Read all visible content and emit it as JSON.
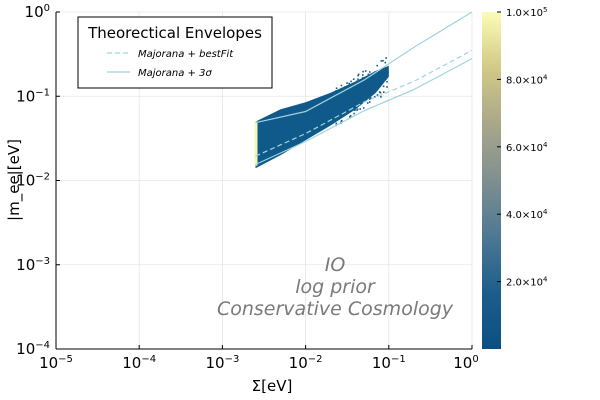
{
  "chart_data": {
    "type": "heatmap",
    "xlabel": "Σ[eV]",
    "ylabel": "|m_ee|[eV]",
    "xscale": "log",
    "yscale": "log",
    "xlim": [
      1e-05,
      1
    ],
    "ylim": [
      0.0001,
      1
    ],
    "x_ticks": [
      {
        "value": 1e-05,
        "base": "10",
        "exp": "−5"
      },
      {
        "value": 0.0001,
        "base": "10",
        "exp": "−4"
      },
      {
        "value": 0.001,
        "base": "10",
        "exp": "−3"
      },
      {
        "value": 0.01,
        "base": "10",
        "exp": "−2"
      },
      {
        "value": 0.1,
        "base": "10",
        "exp": "−1"
      },
      {
        "value": 1,
        "base": "10",
        "exp": "0"
      }
    ],
    "y_ticks": [
      {
        "value": 0.0001,
        "base": "10",
        "exp": "−4"
      },
      {
        "value": 0.001,
        "base": "10",
        "exp": "−3"
      },
      {
        "value": 0.01,
        "base": "10",
        "exp": "−2"
      },
      {
        "value": 0.1,
        "base": "10",
        "exp": "−1"
      },
      {
        "value": 1,
        "base": "10",
        "exp": "0"
      }
    ],
    "grid": true,
    "legend": {
      "title": "Theorectical Envelopes",
      "position": "top-left",
      "entries": [
        {
          "label": "Majorana + bestFit",
          "color": "#9fd3df",
          "style": "dashed"
        },
        {
          "label": "Majorana + 3σ",
          "color": "#9fd3df",
          "style": "solid"
        }
      ]
    },
    "series": [
      {
        "name": "Majorana + bestFit",
        "style": "dashed",
        "color": "#9fd3df",
        "x": [
          0.0025,
          0.01,
          0.05,
          0.2,
          1.0
        ],
        "y": [
          0.0195,
          0.036,
          0.085,
          0.15,
          0.35
        ]
      },
      {
        "name": "Majorana + 3σ upper",
        "style": "solid",
        "color": "#9fd3df",
        "x": [
          0.0025,
          0.01,
          0.05,
          0.2,
          1.0
        ],
        "y": [
          0.0485,
          0.066,
          0.155,
          0.38,
          1.0
        ]
      },
      {
        "name": "Majorana + 3σ lower",
        "style": "solid",
        "color": "#9fd3df",
        "x": [
          0.0025,
          0.01,
          0.05,
          0.2,
          1.0
        ],
        "y": [
          0.0155,
          0.029,
          0.067,
          0.12,
          0.28
        ]
      }
    ],
    "density_region": {
      "description": "sampled posterior density",
      "x": [
        0.0025,
        0.0025,
        0.005,
        0.01,
        0.02,
        0.04,
        0.07,
        0.1,
        0.1,
        0.07,
        0.04,
        0.02,
        0.01,
        0.005,
        0.0025
      ],
      "y": [
        0.014,
        0.05,
        0.07,
        0.085,
        0.11,
        0.15,
        0.2,
        0.23,
        0.17,
        0.11,
        0.07,
        0.045,
        0.03,
        0.02,
        0.014
      ],
      "fill": "#0f5a8a",
      "edge_x": 0.0025,
      "edge_y": [
        0.015,
        0.05
      ],
      "edge_fill": "#f4f8b4"
    },
    "colorbar": {
      "range": [
        0,
        100000
      ],
      "colormap": [
        "#0b4f82",
        "#1c5e8b",
        "#4d7893",
        "#7f8f90",
        "#a9a78a",
        "#d2c986",
        "#fbfdb6"
      ],
      "ticks": [
        {
          "value": 20000,
          "mant": "2.0×10",
          "exp": "4"
        },
        {
          "value": 40000,
          "mant": "4.0×10",
          "exp": "4"
        },
        {
          "value": 60000,
          "mant": "6.0×10",
          "exp": "4"
        },
        {
          "value": 80000,
          "mant": "8.0×10",
          "exp": "4"
        },
        {
          "value": 100000,
          "mant": "1.0×10",
          "exp": "5"
        }
      ]
    },
    "annotations": [
      "IO",
      "log prior",
      "Conservative Cosmology"
    ]
  }
}
